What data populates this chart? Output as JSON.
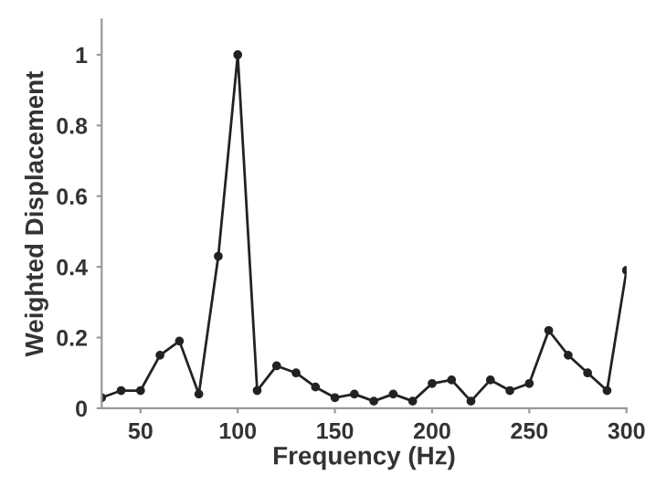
{
  "chart_data": {
    "type": "line",
    "xlabel": "Frequency (Hz)",
    "ylabel": "Weighted Displacement",
    "x": [
      30,
      40,
      50,
      60,
      70,
      80,
      90,
      100,
      110,
      120,
      130,
      140,
      150,
      160,
      170,
      180,
      190,
      200,
      210,
      220,
      230,
      240,
      250,
      260,
      270,
      280,
      290,
      300
    ],
    "series": [
      {
        "color": "#222222",
        "values": [
          0.03,
          0.05,
          0.05,
          0.15,
          0.19,
          0.04,
          0.43,
          1.0,
          0.05,
          0.12,
          0.1,
          0.06,
          0.03,
          0.04,
          0.02,
          0.04,
          0.02,
          0.07,
          0.08,
          0.02,
          0.08,
          0.05,
          0.07,
          0.22,
          0.15,
          0.1,
          0.05,
          0.39
        ]
      }
    ],
    "xlim": [
      30,
      300
    ],
    "ylim": [
      0,
      1.1
    ],
    "xticks": [
      50,
      100,
      150,
      200,
      250,
      300
    ],
    "yticks": [
      0,
      0.2,
      0.4,
      0.6,
      0.8,
      1
    ],
    "marker": "circle",
    "line_style": "solid",
    "grid": false,
    "legend": false
  }
}
